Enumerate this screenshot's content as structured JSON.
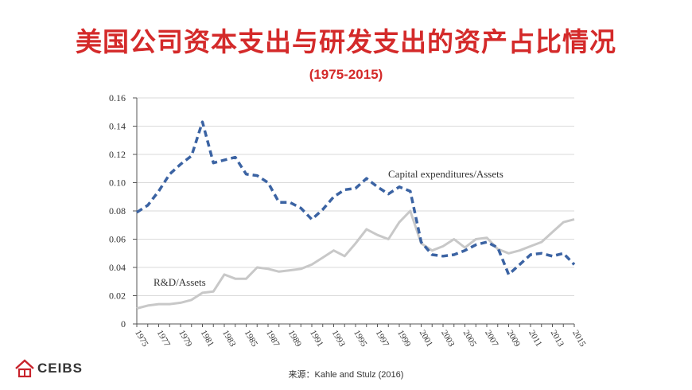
{
  "header": {
    "title": "美国公司资本支出与研发支出的资产占比情况",
    "subtitle": "(1975-2015)"
  },
  "footer": {
    "logo_text": "CEIBS",
    "source": "来源：Kahle and Stulz (2016)"
  },
  "colors": {
    "title": "#d42a2a",
    "capex": "#3b63a3",
    "rd": "#c8c8c8",
    "grid": "#dadada"
  },
  "chart_data": {
    "type": "line",
    "title": "",
    "xlabel": "",
    "ylabel": "",
    "ylim": [
      0,
      0.16
    ],
    "xlim": [
      1975,
      2015
    ],
    "grid": "horizontal",
    "yticks": [
      "0",
      "0.02",
      "0.04",
      "0.06",
      "0.08",
      "0.10",
      "0.12",
      "0.14",
      "0.16"
    ],
    "xticks": [
      "1975",
      "1977",
      "1979",
      "1981",
      "1983",
      "1985",
      "1987",
      "1989",
      "1991",
      "1993",
      "1995",
      "1997",
      "1999",
      "2001",
      "2003",
      "2005",
      "2007",
      "2009",
      "2011",
      "2013",
      "2015"
    ],
    "x": [
      1975,
      1976,
      1977,
      1978,
      1979,
      1980,
      1981,
      1982,
      1983,
      1984,
      1985,
      1986,
      1987,
      1988,
      1989,
      1990,
      1991,
      1992,
      1993,
      1994,
      1995,
      1996,
      1997,
      1998,
      1999,
      2000,
      2001,
      2002,
      2003,
      2004,
      2005,
      2006,
      2007,
      2008,
      2009,
      2010,
      2011,
      2012,
      2013,
      2014,
      2015
    ],
    "series": [
      {
        "name": "Capital expenditures/Assets",
        "style": "dashed",
        "values": [
          0.079,
          0.084,
          0.094,
          0.106,
          0.113,
          0.119,
          0.143,
          0.114,
          0.116,
          0.118,
          0.106,
          0.105,
          0.1,
          0.086,
          0.086,
          0.082,
          0.074,
          0.081,
          0.09,
          0.095,
          0.096,
          0.103,
          0.097,
          0.092,
          0.097,
          0.094,
          0.058,
          0.049,
          0.048,
          0.049,
          0.052,
          0.056,
          0.058,
          0.054,
          0.035,
          0.042,
          0.049,
          0.05,
          0.048,
          0.05,
          0.042
        ]
      },
      {
        "name": "R&D/Assets",
        "style": "solid",
        "values": [
          0.011,
          0.013,
          0.014,
          0.014,
          0.015,
          0.017,
          0.022,
          0.023,
          0.035,
          0.032,
          0.032,
          0.04,
          0.039,
          0.037,
          0.038,
          0.039,
          0.042,
          0.047,
          0.052,
          0.048,
          0.057,
          0.067,
          0.063,
          0.06,
          0.072,
          0.08,
          0.057,
          0.052,
          0.055,
          0.06,
          0.054,
          0.06,
          0.061,
          0.053,
          0.05,
          0.052,
          0.055,
          0.058,
          0.065,
          0.072,
          0.074
        ]
      }
    ]
  }
}
